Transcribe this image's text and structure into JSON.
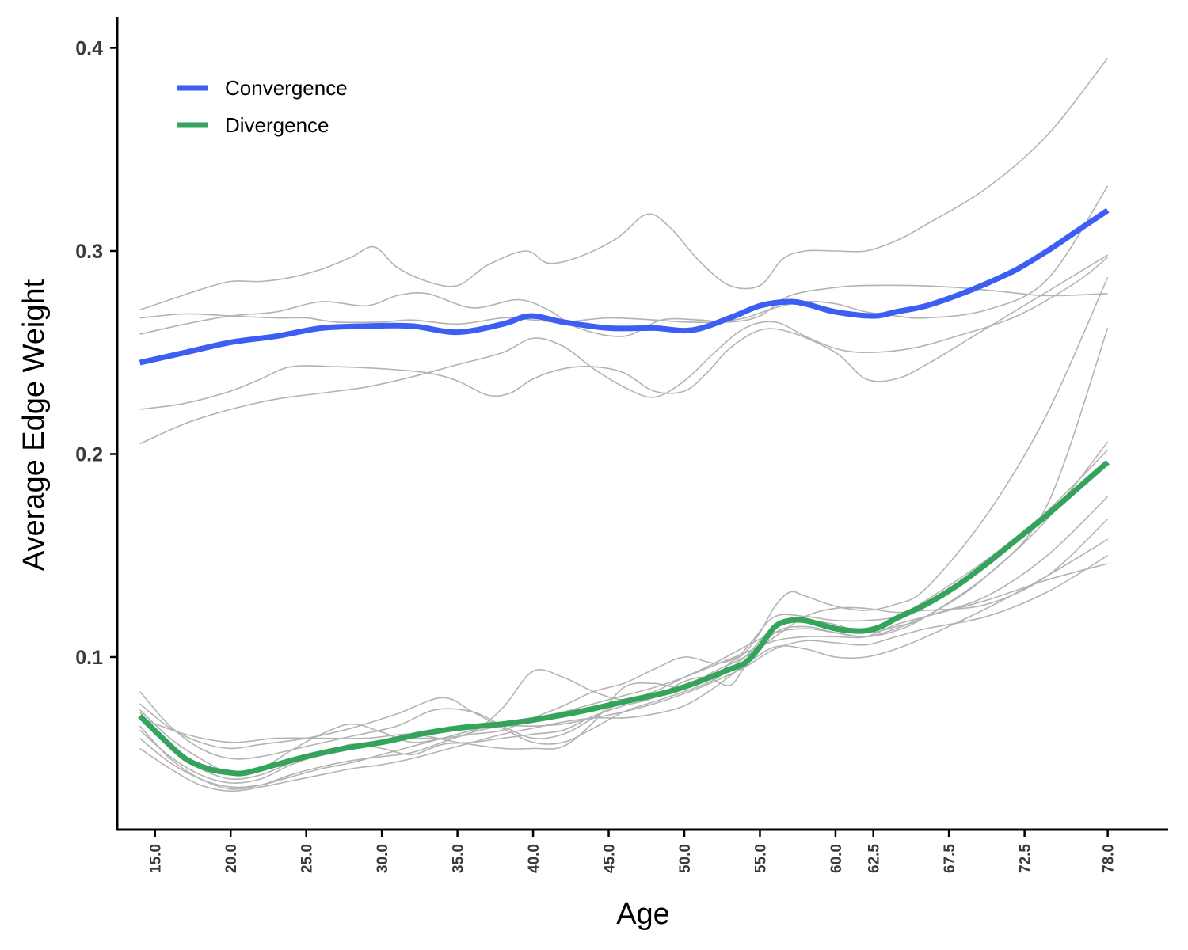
{
  "chart_data": {
    "type": "line",
    "xlabel": "Age",
    "ylabel": "Average Edge Weight",
    "xlim": [
      12.5,
      82
    ],
    "ylim": [
      0.015,
      0.415
    ],
    "xticks": [
      15.0,
      20.0,
      25.0,
      30.0,
      35.0,
      40.0,
      45.0,
      50.0,
      55.0,
      60.0,
      62.5,
      67.5,
      72.5,
      78.0
    ],
    "xtick_labels": [
      "15.0",
      "20.0",
      "25.0",
      "30.0",
      "35.0",
      "40.0",
      "45.0",
      "50.0",
      "55.0",
      "60.0",
      "62.5",
      "67.5",
      "72.5",
      "78.0"
    ],
    "yticks": [
      0.1,
      0.2,
      0.3,
      0.4
    ],
    "ytick_labels": [
      "0.1",
      "0.2",
      "0.3",
      "0.4"
    ],
    "grid": false,
    "legend_position": "top-left",
    "colors": {
      "convergence": "#3d5ef2",
      "divergence": "#34a35c",
      "individual": "#b3b3b3",
      "axis": "#000000"
    },
    "series": [
      {
        "name": "Convergence",
        "color": "#3d5ef2",
        "x": [
          14,
          17,
          20,
          23,
          26,
          29,
          32,
          35,
          38,
          39.8,
          42,
          45,
          48,
          50.5,
          53,
          55,
          56.8,
          58,
          60,
          62.5,
          64,
          66,
          68,
          70,
          72,
          74,
          76,
          78
        ],
        "y": [
          0.245,
          0.25,
          0.255,
          0.258,
          0.262,
          0.263,
          0.263,
          0.26,
          0.264,
          0.268,
          0.265,
          0.262,
          0.262,
          0.261,
          0.267,
          0.273,
          0.275,
          0.274,
          0.27,
          0.268,
          0.27,
          0.273,
          0.278,
          0.284,
          0.291,
          0.3,
          0.31,
          0.32
        ]
      },
      {
        "name": "Divergence",
        "color": "#34a35c",
        "x": [
          14,
          15.5,
          17,
          18.5,
          20,
          21,
          23,
          25,
          27.5,
          30,
          32.5,
          35,
          38,
          40,
          43,
          46,
          49,
          51,
          53,
          54,
          55,
          56,
          57,
          58,
          59,
          60,
          61,
          62,
          63,
          64,
          66,
          68,
          70,
          72,
          74,
          76,
          78
        ],
        "y": [
          0.071,
          0.06,
          0.05,
          0.045,
          0.043,
          0.043,
          0.047,
          0.051,
          0.055,
          0.058,
          0.062,
          0.065,
          0.067,
          0.069,
          0.073,
          0.078,
          0.083,
          0.088,
          0.094,
          0.097,
          0.105,
          0.115,
          0.118,
          0.118,
          0.116,
          0.114,
          0.113,
          0.113,
          0.115,
          0.119,
          0.126,
          0.135,
          0.146,
          0.158,
          0.17,
          0.183,
          0.196
        ]
      }
    ],
    "individual_series": [
      {
        "x": [
          14,
          16,
          18,
          20,
          22,
          24,
          26,
          28,
          29.5,
          31,
          33,
          35,
          37,
          39.5,
          41,
          43,
          45.5,
          47.5,
          49,
          51,
          53,
          55,
          56.5,
          58,
          60,
          62,
          64,
          66,
          70,
          74,
          78
        ],
        "y": [
          0.271,
          0.276,
          0.281,
          0.285,
          0.285,
          0.287,
          0.291,
          0.297,
          0.302,
          0.292,
          0.285,
          0.283,
          0.293,
          0.3,
          0.294,
          0.297,
          0.306,
          0.318,
          0.312,
          0.295,
          0.283,
          0.283,
          0.296,
          0.3,
          0.3,
          0.3,
          0.305,
          0.313,
          0.331,
          0.357,
          0.395
        ]
      },
      {
        "x": [
          14,
          17,
          20,
          23,
          25,
          27,
          30,
          32,
          35,
          38,
          40,
          42,
          45,
          48,
          50,
          52,
          54,
          56,
          58,
          60,
          62,
          64,
          66,
          70,
          74,
          78
        ],
        "y": [
          0.267,
          0.269,
          0.268,
          0.267,
          0.267,
          0.265,
          0.265,
          0.266,
          0.264,
          0.267,
          0.266,
          0.265,
          0.267,
          0.266,
          0.265,
          0.265,
          0.267,
          0.272,
          0.275,
          0.274,
          0.27,
          0.268,
          0.267,
          0.271,
          0.286,
          0.332
        ]
      },
      {
        "x": [
          14,
          17,
          20,
          23,
          26,
          29,
          31,
          33,
          36,
          39,
          41,
          43,
          46,
          48.5,
          51,
          53,
          55,
          57,
          60,
          62,
          65,
          68,
          71,
          74,
          78
        ],
        "y": [
          0.259,
          0.264,
          0.268,
          0.27,
          0.275,
          0.273,
          0.278,
          0.279,
          0.272,
          0.276,
          0.271,
          0.262,
          0.258,
          0.266,
          0.266,
          0.265,
          0.268,
          0.278,
          0.282,
          0.283,
          0.283,
          0.282,
          0.28,
          0.278,
          0.279
        ]
      },
      {
        "x": [
          14,
          17,
          20,
          22,
          24,
          27,
          30,
          33,
          35,
          37,
          38.5,
          40,
          42,
          44,
          46,
          48,
          50,
          51.5,
          53,
          55,
          57,
          60,
          62,
          64,
          66,
          70,
          74,
          78
        ],
        "y": [
          0.222,
          0.225,
          0.231,
          0.237,
          0.243,
          0.243,
          0.242,
          0.24,
          0.236,
          0.229,
          0.23,
          0.237,
          0.242,
          0.243,
          0.24,
          0.231,
          0.231,
          0.24,
          0.252,
          0.261,
          0.26,
          0.25,
          0.237,
          0.237,
          0.244,
          0.262,
          0.28,
          0.298
        ]
      },
      {
        "x": [
          14,
          17,
          20,
          23,
          26,
          29,
          32,
          35,
          38,
          40,
          42,
          44,
          46,
          48,
          50,
          52,
          54,
          56,
          58,
          60,
          62,
          65,
          68,
          72,
          76,
          78
        ],
        "y": [
          0.205,
          0.215,
          0.222,
          0.227,
          0.23,
          0.233,
          0.238,
          0.244,
          0.25,
          0.257,
          0.253,
          0.242,
          0.233,
          0.228,
          0.236,
          0.25,
          0.262,
          0.265,
          0.258,
          0.252,
          0.25,
          0.252,
          0.258,
          0.268,
          0.285,
          0.297
        ]
      },
      {
        "x": [
          14,
          16,
          18,
          20,
          22,
          25,
          28,
          31,
          33.5,
          36,
          38,
          40,
          42,
          44,
          46,
          48,
          50,
          52,
          53,
          54,
          55,
          56,
          57,
          58,
          60,
          62,
          64,
          66,
          70,
          74,
          78
        ],
        "y": [
          0.083,
          0.066,
          0.055,
          0.05,
          0.051,
          0.056,
          0.061,
          0.066,
          0.074,
          0.073,
          0.066,
          0.06,
          0.062,
          0.07,
          0.078,
          0.081,
          0.086,
          0.09,
          0.097,
          0.102,
          0.112,
          0.125,
          0.132,
          0.13,
          0.125,
          0.123,
          0.126,
          0.134,
          0.17,
          0.22,
          0.287
        ]
      },
      {
        "x": [
          14,
          16,
          18,
          20,
          22,
          25,
          28,
          31,
          34,
          36,
          38,
          40,
          42,
          44,
          46,
          48,
          50,
          52,
          54,
          56,
          58,
          60,
          62,
          64,
          66,
          70,
          74,
          78
        ],
        "y": [
          0.077,
          0.065,
          0.058,
          0.055,
          0.057,
          0.06,
          0.065,
          0.072,
          0.08,
          0.073,
          0.065,
          0.058,
          0.058,
          0.065,
          0.073,
          0.078,
          0.083,
          0.089,
          0.1,
          0.115,
          0.118,
          0.116,
          0.112,
          0.115,
          0.12,
          0.14,
          0.175,
          0.262
        ]
      },
      {
        "x": [
          14,
          16,
          18,
          20,
          22,
          24,
          26,
          28,
          30,
          32,
          34,
          36,
          38,
          40,
          42,
          44,
          46,
          48,
          50,
          52,
          54,
          56,
          58,
          60,
          62,
          64,
          66,
          70,
          74,
          78
        ],
        "y": [
          0.074,
          0.06,
          0.05,
          0.043,
          0.045,
          0.054,
          0.062,
          0.067,
          0.063,
          0.058,
          0.06,
          0.063,
          0.075,
          0.093,
          0.09,
          0.083,
          0.079,
          0.083,
          0.09,
          0.097,
          0.105,
          0.112,
          0.114,
          0.112,
          0.11,
          0.113,
          0.12,
          0.14,
          0.168,
          0.206
        ]
      },
      {
        "x": [
          14,
          16,
          18,
          20,
          22,
          24,
          26,
          28,
          30,
          32,
          34,
          36,
          38,
          40,
          42,
          44,
          46,
          48,
          50,
          52,
          53.5,
          54.5,
          56,
          58,
          60,
          62,
          64,
          66,
          70,
          74,
          78
        ],
        "y": [
          0.073,
          0.055,
          0.045,
          0.04,
          0.042,
          0.048,
          0.053,
          0.056,
          0.058,
          0.06,
          0.06,
          0.062,
          0.064,
          0.07,
          0.076,
          0.083,
          0.087,
          0.094,
          0.1,
          0.097,
          0.1,
          0.108,
          0.12,
          0.12,
          0.118,
          0.118,
          0.12,
          0.128,
          0.148,
          0.172,
          0.202
        ]
      },
      {
        "x": [
          14,
          16,
          18,
          20,
          22,
          24,
          26,
          28,
          30,
          32,
          34,
          36,
          38,
          40,
          42,
          44,
          46,
          48,
          50,
          51.5,
          53,
          54,
          56,
          58,
          60,
          62,
          64,
          66,
          70,
          74,
          78
        ],
        "y": [
          0.064,
          0.051,
          0.042,
          0.038,
          0.04,
          0.047,
          0.052,
          0.057,
          0.055,
          0.052,
          0.057,
          0.058,
          0.06,
          0.062,
          0.064,
          0.071,
          0.076,
          0.08,
          0.088,
          0.09,
          0.086,
          0.095,
          0.112,
          0.115,
          0.112,
          0.11,
          0.114,
          0.12,
          0.13,
          0.15,
          0.179
        ]
      },
      {
        "x": [
          14,
          16,
          18,
          20,
          22,
          24,
          26,
          28,
          30,
          32,
          34,
          36,
          38,
          40,
          42,
          44,
          46,
          48,
          50,
          52,
          54,
          56,
          58,
          60,
          62,
          64,
          66,
          70,
          74,
          78
        ],
        "y": [
          0.06,
          0.048,
          0.04,
          0.036,
          0.037,
          0.041,
          0.045,
          0.048,
          0.052,
          0.056,
          0.06,
          0.064,
          0.068,
          0.07,
          0.073,
          0.077,
          0.081,
          0.085,
          0.09,
          0.096,
          0.102,
          0.108,
          0.11,
          0.11,
          0.11,
          0.116,
          0.12,
          0.128,
          0.138,
          0.146
        ]
      },
      {
        "x": [
          14,
          16,
          18,
          20,
          22,
          24,
          26,
          28,
          30,
          32,
          34,
          36,
          38,
          40,
          42,
          44,
          46,
          48,
          50,
          52,
          54,
          56,
          58,
          60,
          62,
          64,
          66,
          70,
          74,
          78
        ],
        "y": [
          0.066,
          0.05,
          0.04,
          0.035,
          0.037,
          0.042,
          0.046,
          0.049,
          0.051,
          0.053,
          0.058,
          0.063,
          0.066,
          0.066,
          0.067,
          0.07,
          0.073,
          0.077,
          0.082,
          0.088,
          0.095,
          0.104,
          0.108,
          0.107,
          0.106,
          0.11,
          0.114,
          0.12,
          0.132,
          0.15
        ]
      },
      {
        "x": [
          14,
          16,
          18,
          20,
          22,
          24,
          26,
          28,
          30,
          32,
          34,
          36,
          38,
          40,
          42,
          44,
          46,
          48,
          50,
          52,
          54,
          56,
          58,
          60,
          62,
          64,
          66,
          70,
          74,
          78
        ],
        "y": [
          0.055,
          0.045,
          0.037,
          0.034,
          0.036,
          0.039,
          0.042,
          0.045,
          0.047,
          0.05,
          0.054,
          0.058,
          0.062,
          0.065,
          0.068,
          0.07,
          0.07,
          0.072,
          0.076,
          0.085,
          0.096,
          0.105,
          0.104,
          0.1,
          0.1,
          0.104,
          0.11,
          0.124,
          0.14,
          0.158
        ]
      },
      {
        "x": [
          14,
          17,
          20,
          23,
          26,
          29,
          32,
          35,
          38,
          40,
          42,
          44,
          46,
          48,
          50,
          52,
          54,
          56,
          58,
          60,
          62,
          64,
          66,
          70,
          74,
          78
        ],
        "y": [
          0.07,
          0.062,
          0.058,
          0.06,
          0.06,
          0.06,
          0.062,
          0.058,
          0.055,
          0.055,
          0.056,
          0.068,
          0.085,
          0.087,
          0.085,
          0.093,
          0.1,
          0.11,
          0.12,
          0.124,
          0.124,
          0.122,
          0.123,
          0.126,
          0.14,
          0.168
        ]
      }
    ],
    "legend": [
      {
        "label": "Convergence",
        "color": "#3d5ef2"
      },
      {
        "label": "Divergence",
        "color": "#34a35c"
      }
    ]
  }
}
